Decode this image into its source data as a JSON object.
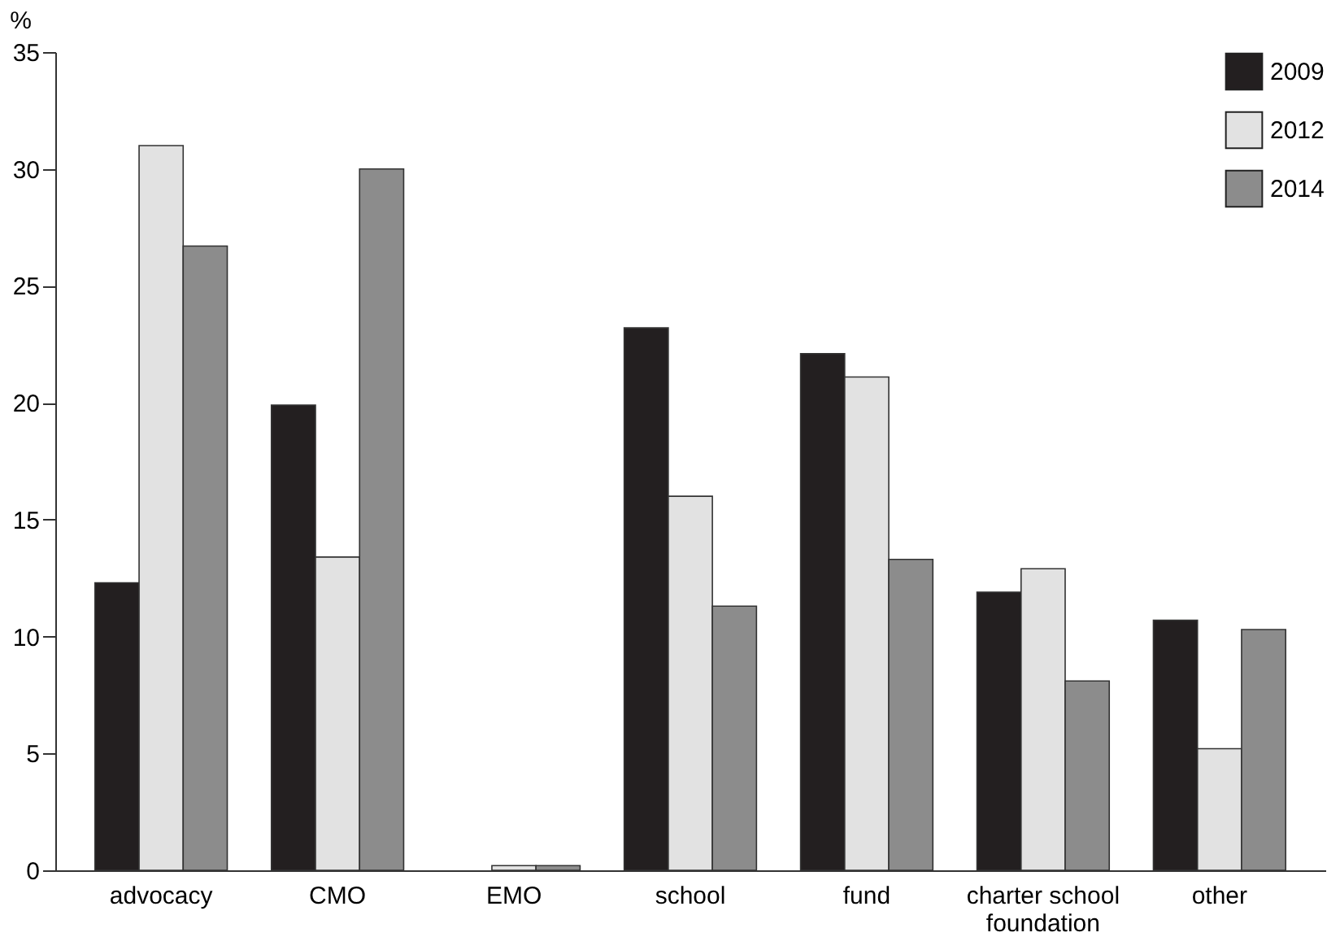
{
  "chart_data": {
    "type": "bar",
    "ylabel": "%",
    "categories": [
      "advocacy",
      "CMO",
      "EMO",
      "school",
      "fund",
      "charter school foundation",
      "other"
    ],
    "series": [
      {
        "name": "2009",
        "color": "#231f20",
        "values": [
          12.3,
          19.9,
          null,
          23.2,
          22.1,
          11.9,
          10.7
        ]
      },
      {
        "name": "2012",
        "color": "#e2e2e2",
        "values": [
          31,
          13.4,
          0.2,
          16.0,
          21.1,
          12.9,
          5.2
        ]
      },
      {
        "name": "2014",
        "color": "#8c8c8c",
        "values": [
          26.7,
          30,
          0.2,
          11.3,
          13.3,
          8.1,
          10.3
        ]
      }
    ],
    "ylim": [
      0,
      35
    ],
    "yticks": [
      0,
      5,
      10,
      15,
      20,
      25,
      30,
      35
    ],
    "grid": false,
    "legend": "top right"
  }
}
